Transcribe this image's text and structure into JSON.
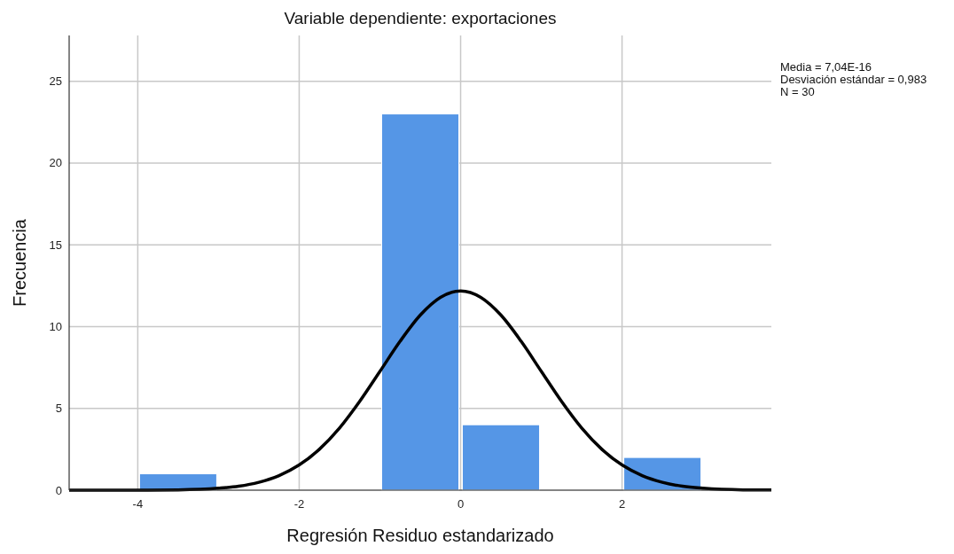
{
  "chart_data": {
    "type": "histogram",
    "title": "Variable dependiente: exportaciones",
    "xlabel": "Regresión Residuo estandarizado",
    "ylabel": "Frecuencia",
    "annotations": [
      "Media = 7,04E-16",
      "Desviación estándar = 0,983",
      "N = 30"
    ],
    "bins": [
      -4,
      -3,
      -2,
      -1,
      0,
      1,
      2,
      3
    ],
    "series": [
      {
        "color": "#5596e6",
        "values": [
          1,
          0,
          0,
          23,
          4,
          0,
          2
        ]
      },
      {
        "type": "line",
        "color": "#000000",
        "x": [
          -4.85,
          -4,
          -3.5,
          -3,
          -2.75,
          -2.5,
          -2.25,
          -2,
          -1.75,
          -1.5,
          -1.25,
          -1,
          -0.75,
          -0.5,
          -0.25,
          0,
          0.25,
          0.5,
          0.75,
          1,
          1.25,
          1.5,
          1.75,
          2,
          2.25,
          2.5,
          2.75,
          3,
          3.5,
          3.85
        ],
        "values": [
          0,
          0,
          0.02,
          0.12,
          0.24,
          0.48,
          0.89,
          1.54,
          2.5,
          3.8,
          5.43,
          7.26,
          9.1,
          10.7,
          11.79,
          12.18,
          11.79,
          10.7,
          9.1,
          7.26,
          5.43,
          3.8,
          2.5,
          1.54,
          0.89,
          0.48,
          0.24,
          0.12,
          0.02,
          0.01
        ]
      }
    ],
    "xlim": [
      -4.85,
      3.85
    ],
    "xticks": [
      -4,
      -2,
      0,
      2
    ],
    "ylim": [
      0,
      27.8
    ],
    "yticks": [
      0,
      5,
      10,
      15,
      20,
      25
    ],
    "grid": true,
    "line_style": "solid",
    "marker": "none"
  }
}
